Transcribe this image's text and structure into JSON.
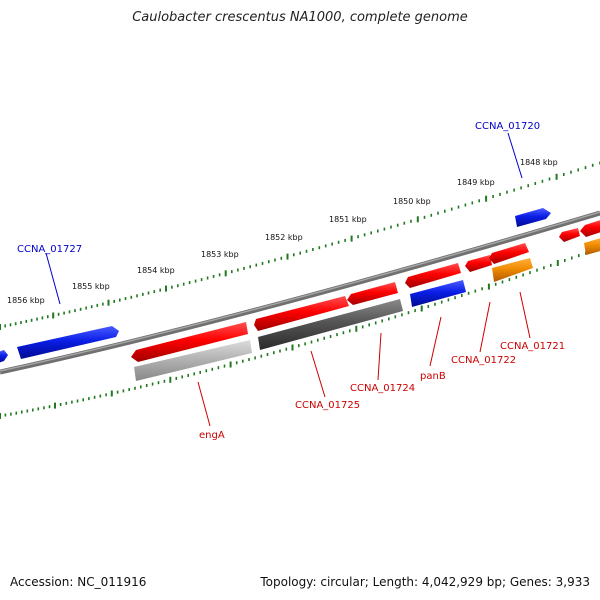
{
  "title": "Caulobacter crescentus NA1000, complete genome",
  "footer": {
    "accession": "Accession: NC_011916",
    "summary": "Topology: circular; Length: 4,042,929 bp; Genes: 3,933"
  },
  "colors": {
    "backbone": "#808080",
    "tick_green": "#1f7a1f",
    "gene_red": "#e00000",
    "gene_blue": "#0a1ee6",
    "gene_orange": "#f08c00",
    "gene_gray_light": "#b4b4b4",
    "gene_gray_dark": "#555555",
    "label_red": "#cc0000",
    "label_blue": "#0000cc"
  },
  "scale_ticks": [
    "1848 kbp",
    "1849 kbp",
    "1850 kbp",
    "1851 kbp",
    "1852 kbp",
    "1853 kbp",
    "1854 kbp",
    "1855 kbp",
    "1856 kbp"
  ],
  "gene_labels_top": [
    "CCNA_01720",
    "CCNA_01727"
  ],
  "gene_labels_bottom": [
    "CCNA_01721",
    "CCNA_01722",
    "panB",
    "CCNA_01724",
    "CCNA_01725",
    "engA"
  ]
}
